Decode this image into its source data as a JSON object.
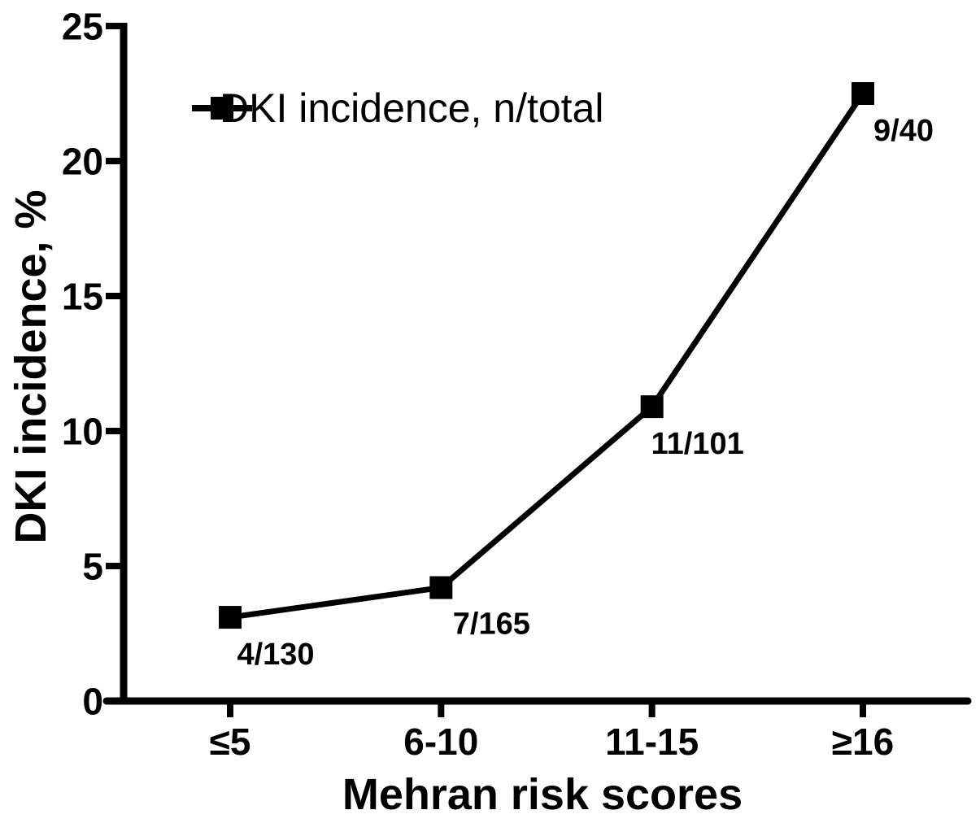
{
  "chart_data": {
    "type": "line",
    "title": "",
    "xlabel": "Mehran risk scores",
    "ylabel": "DKI incidence, %",
    "categories": [
      "≤5",
      "6-10",
      "11-15",
      "≥16"
    ],
    "series": [
      {
        "name": "DKI incidence, n/total",
        "values": [
          3.1,
          4.2,
          10.9,
          22.5
        ],
        "point_labels": [
          "4/130",
          "7/165",
          "11/101",
          "9/40"
        ],
        "color": "#000000",
        "marker": "filled-square"
      }
    ],
    "ylim": [
      0,
      25
    ],
    "yticks": [
      0,
      5,
      10,
      15,
      20,
      25
    ],
    "grid": false,
    "legend_position": "upper-left-inside",
    "background_color": "#ffffff",
    "axis_color": "#000000"
  }
}
